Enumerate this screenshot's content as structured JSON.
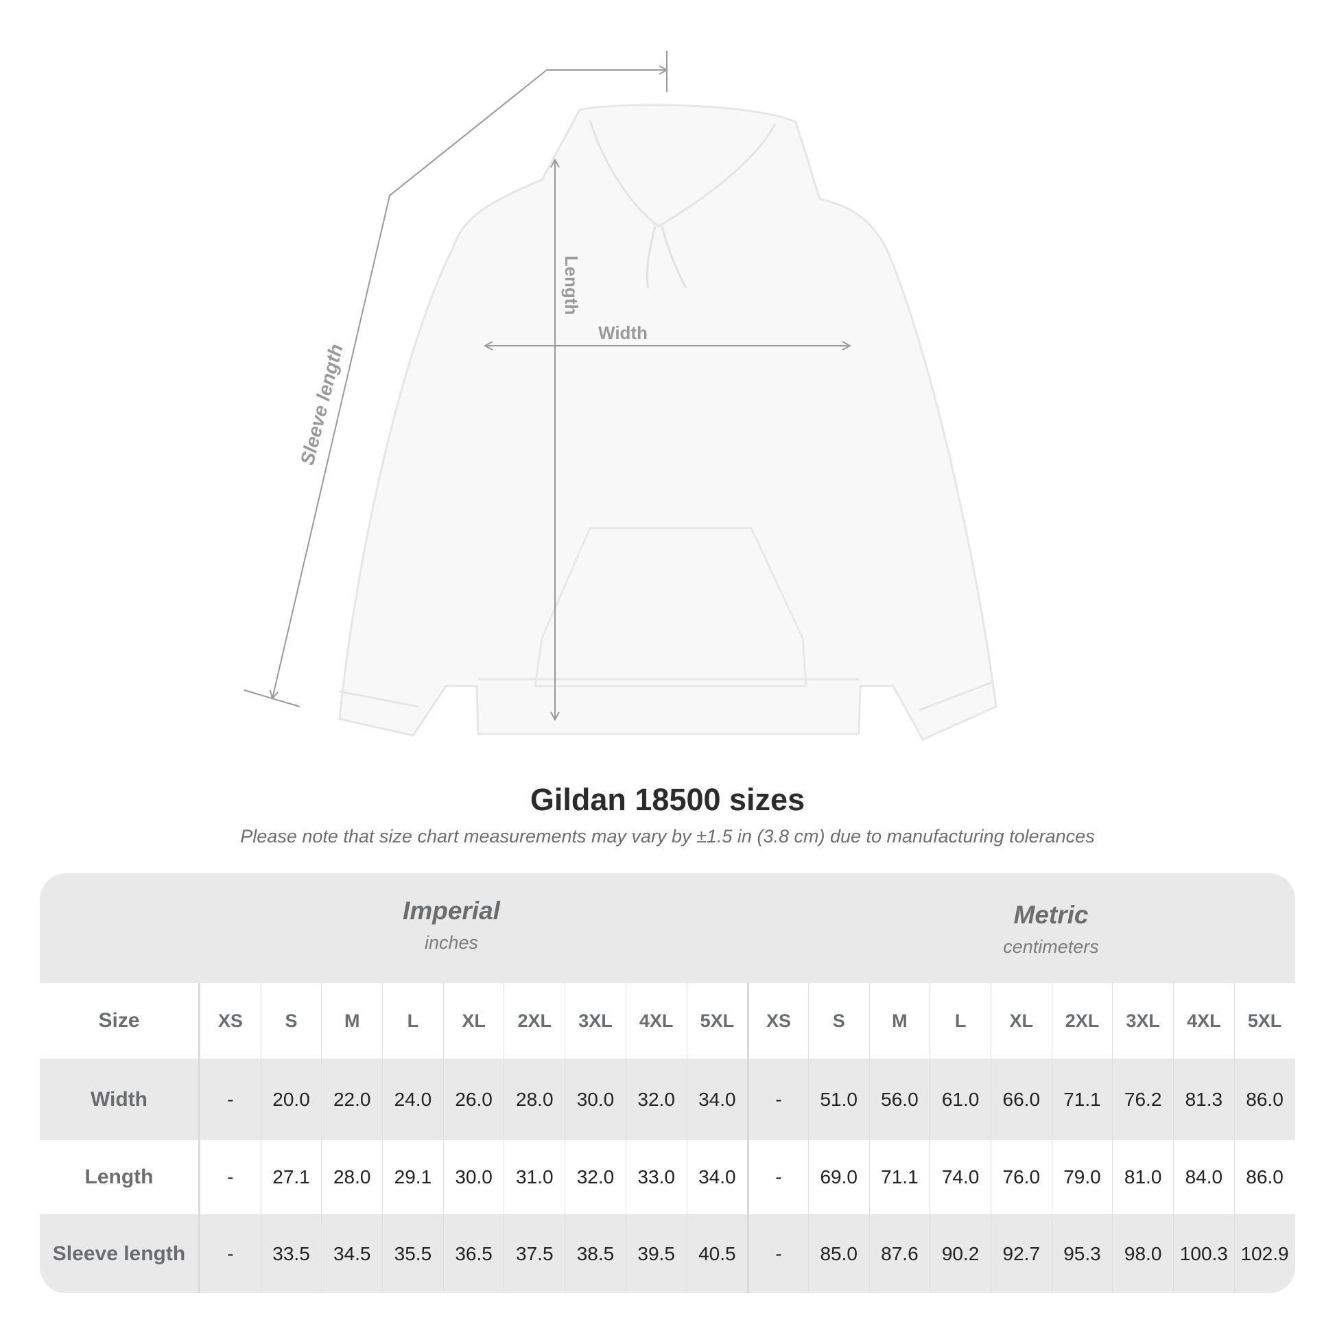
{
  "diagram": {
    "labels": {
      "sleeve": "Sleeve length",
      "length": "Length",
      "width": "Width"
    }
  },
  "title": "Gildan 18500 sizes",
  "subtitle": "Please note that size chart measurements may vary by ±1.5 in (3.8 cm) due to manufacturing tolerances",
  "table": {
    "imperial": {
      "name": "Imperial",
      "unit": "inches"
    },
    "metric": {
      "name": "Metric",
      "unit": "centimeters"
    },
    "size_label": "Size",
    "sizes": [
      "XS",
      "S",
      "M",
      "L",
      "XL",
      "2XL",
      "3XL",
      "4XL",
      "5XL",
      "XS",
      "S",
      "M",
      "L",
      "XL",
      "2XL",
      "3XL",
      "4XL",
      "5XL"
    ],
    "rows": [
      {
        "label": "Width",
        "values": [
          "-",
          "20.0",
          "22.0",
          "24.0",
          "26.0",
          "28.0",
          "30.0",
          "32.0",
          "34.0",
          "-",
          "51.0",
          "56.0",
          "61.0",
          "66.0",
          "71.1",
          "76.2",
          "81.3",
          "86.0"
        ]
      },
      {
        "label": "Length",
        "values": [
          "-",
          "27.1",
          "28.0",
          "29.1",
          "30.0",
          "31.0",
          "32.0",
          "33.0",
          "34.0",
          "-",
          "69.0",
          "71.1",
          "74.0",
          "76.0",
          "79.0",
          "81.0",
          "84.0",
          "86.0"
        ]
      },
      {
        "label": "Sleeve length",
        "values": [
          "-",
          "33.5",
          "34.5",
          "35.5",
          "36.5",
          "37.5",
          "38.5",
          "39.5",
          "40.5",
          "-",
          "85.0",
          "87.6",
          "90.2",
          "92.7",
          "95.3",
          "98.0",
          "100.3",
          "102.9"
        ]
      }
    ]
  }
}
